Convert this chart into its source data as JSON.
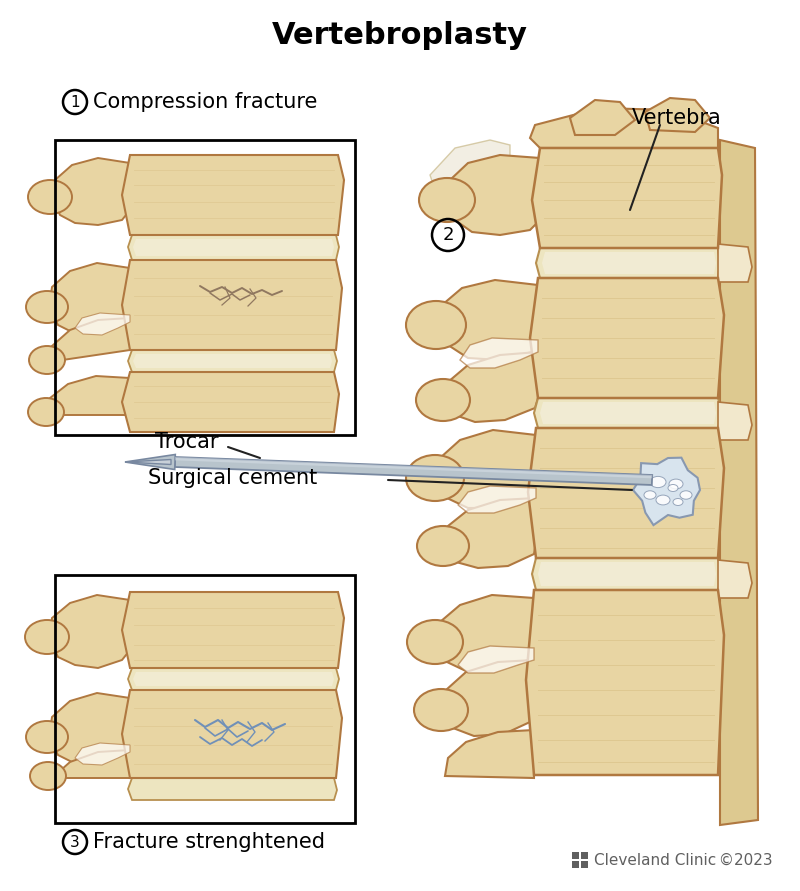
{
  "title": "Vertebroplasty",
  "title_fontsize": 22,
  "title_fontweight": "bold",
  "background_color": "#ffffff",
  "label1_circle": "1",
  "label1_text": " Compression fracture",
  "label2_circle": "2",
  "label3_circle": "3",
  "label3_text": " Fracture strenghtened",
  "label_vertebra": "Vertebra",
  "label_trocar": "Trocar",
  "label_cement": "Surgical cement",
  "footer": "© 2023",
  "footer_clinic": "Cleveland Clinic",
  "bone_fill": "#e8d5a3",
  "bone_fill2": "#ddc990",
  "bone_dark": "#b07840",
  "bone_mid": "#cdb070",
  "bone_light": "#f2e8cc",
  "bone_shadow": "#c4a060",
  "disc_fill": "#ede5c0",
  "disc_edge": "#b89050",
  "cement_fill": "#d8e4ee",
  "cement_dark": "#8898b0",
  "trocar_fill": "#b8c4cc",
  "trocar_dark": "#7888a0",
  "crack_color": "#7090b8",
  "frac_color": "#907860",
  "line_color": "#222222",
  "text_color": "#222222",
  "gray_color": "#606060"
}
